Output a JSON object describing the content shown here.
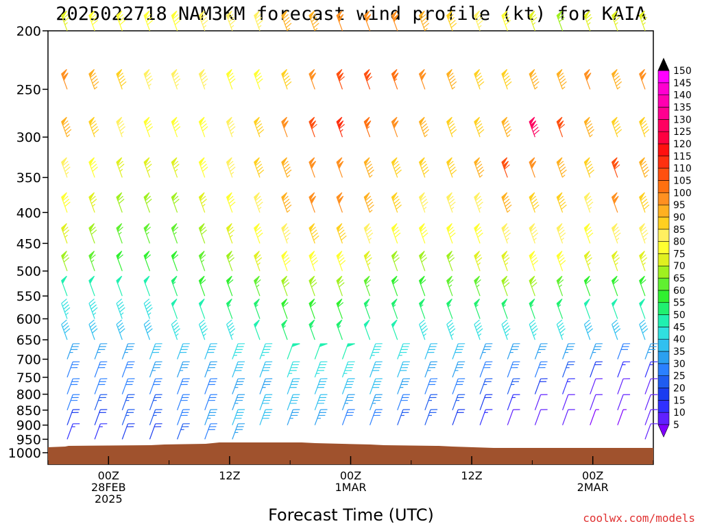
{
  "chart_data": {
    "type": "wind-barb-time-height",
    "title": "2025022718 NAM3KM forecast wind profile (kt) for KAIA",
    "xlabel": "Forecast Time (UTC)",
    "ylabel": "",
    "credit": "coolwx.com/models",
    "pressure_levels": [
      200,
      250,
      300,
      350,
      400,
      450,
      500,
      550,
      600,
      650,
      700,
      750,
      800,
      850,
      900,
      950,
      1000
    ],
    "ylim": [
      1000,
      200
    ],
    "x_ticks": [
      {
        "hour": 6,
        "line1": "00Z",
        "line2": "28FEB",
        "line3": "2025"
      },
      {
        "hour": 18,
        "line1": "12Z",
        "line2": "",
        "line3": ""
      },
      {
        "hour": 30,
        "line1": "00Z",
        "line2": "1MAR",
        "line3": ""
      },
      {
        "hour": 42,
        "line1": "12Z",
        "line2": "",
        "line3": ""
      },
      {
        "hour": 54,
        "line1": "00Z",
        "line2": "2MAR",
        "line3": ""
      }
    ],
    "xlim": [
      0,
      60
    ],
    "colorbar": {
      "levels": [
        5,
        10,
        15,
        20,
        25,
        30,
        35,
        40,
        45,
        50,
        55,
        60,
        65,
        70,
        75,
        80,
        85,
        90,
        95,
        100,
        105,
        110,
        115,
        120,
        125,
        130,
        135,
        140,
        145,
        150
      ],
      "colors": [
        "#7f00ff",
        "#6020ff",
        "#3030ff",
        "#1a3cf0",
        "#1f5cf0",
        "#2b80ff",
        "#2ba0f0",
        "#30c0f0",
        "#30e0e0",
        "#20f0b0",
        "#20f070",
        "#30f030",
        "#60f030",
        "#a0f020",
        "#e0f020",
        "#ffff30",
        "#fff060",
        "#ffd020",
        "#ffb020",
        "#ff9020",
        "#ff7010",
        "#ff5010",
        "#ff3010",
        "#ff1010",
        "#ff0040",
        "#ff0060",
        "#ff0090",
        "#ff00b0",
        "#ff00d0",
        "#ff00ff"
      ]
    },
    "series": [
      {
        "hour_start": 0,
        "hour_end": 59,
        "level": 200,
        "speed_kt": [
          75,
          80,
          80,
          80,
          80,
          85,
          85,
          85,
          95,
          95,
          100,
          100,
          100,
          95,
          90,
          85,
          80,
          75,
          70,
          75,
          75,
          75
        ]
      },
      {
        "hour_start": 0,
        "hour_end": 59,
        "level": 250,
        "speed_kt": [
          100,
          95,
          90,
          85,
          85,
          85,
          80,
          80,
          90,
          100,
          110,
          110,
          105,
          100,
          95,
          90,
          90,
          95,
          95,
          100,
          95,
          100
        ]
      },
      {
        "hour_start": 0,
        "hour_end": 59,
        "level": 300,
        "speed_kt": [
          95,
          90,
          85,
          80,
          80,
          80,
          85,
          90,
          100,
          110,
          115,
          105,
          100,
          95,
          90,
          90,
          95,
          130,
          110,
          95,
          90,
          90
        ]
      },
      {
        "hour_start": 0,
        "hour_end": 59,
        "level": 350,
        "speed_kt": [
          85,
          80,
          75,
          75,
          75,
          80,
          85,
          90,
          95,
          100,
          100,
          95,
          90,
          90,
          90,
          95,
          110,
          100,
          95,
          90,
          110,
          95
        ]
      },
      {
        "hour_start": 0,
        "hour_end": 59,
        "level": 400,
        "speed_kt": [
          80,
          75,
          70,
          70,
          70,
          75,
          80,
          85,
          95,
          100,
          100,
          95,
          90,
          85,
          85,
          85,
          95,
          90,
          90,
          85,
          100,
          90
        ]
      },
      {
        "hour_start": 0,
        "hour_end": 59,
        "level": 450,
        "speed_kt": [
          75,
          70,
          65,
          65,
          65,
          70,
          75,
          80,
          85,
          90,
          90,
          85,
          80,
          80,
          80,
          80,
          85,
          85,
          85,
          80,
          85,
          85
        ]
      },
      {
        "hour_start": 0,
        "hour_end": 59,
        "level": 500,
        "speed_kt": [
          70,
          65,
          60,
          60,
          60,
          65,
          70,
          75,
          80,
          80,
          80,
          75,
          70,
          70,
          70,
          75,
          75,
          80,
          80,
          75,
          75,
          75
        ]
      },
      {
        "hour_start": 0,
        "hour_end": 59,
        "level": 550,
        "speed_kt": [
          50,
          50,
          50,
          50,
          55,
          60,
          60,
          65,
          70,
          70,
          70,
          65,
          60,
          60,
          65,
          65,
          70,
          70,
          65,
          60,
          60,
          60
        ]
      },
      {
        "hour_start": 0,
        "hour_end": 59,
        "level": 600,
        "speed_kt": [
          45,
          45,
          45,
          45,
          50,
          50,
          55,
          55,
          60,
          60,
          60,
          55,
          55,
          55,
          55,
          55,
          55,
          55,
          55,
          50,
          50,
          50
        ]
      },
      {
        "hour_start": 0,
        "hour_end": 59,
        "level": 650,
        "speed_kt": [
          40,
          40,
          40,
          40,
          45,
          45,
          45,
          50,
          55,
          55,
          55,
          50,
          50,
          45,
          45,
          45,
          45,
          45,
          45,
          40,
          40,
          40
        ]
      },
      {
        "hour_start": 0,
        "hour_end": 59,
        "level": 700,
        "speed_kt": [
          35,
          35,
          35,
          40,
          40,
          40,
          45,
          45,
          50,
          50,
          50,
          45,
          45,
          40,
          40,
          35,
          35,
          35,
          35,
          35,
          30,
          35
        ]
      },
      {
        "hour_start": 0,
        "hour_end": 59,
        "level": 750,
        "speed_kt": [
          30,
          30,
          30,
          35,
          35,
          35,
          40,
          40,
          45,
          45,
          45,
          40,
          40,
          35,
          35,
          30,
          30,
          30,
          25,
          20,
          15,
          15
        ]
      },
      {
        "hour_start": 0,
        "hour_end": 59,
        "level": 800,
        "speed_kt": [
          30,
          30,
          30,
          30,
          30,
          30,
          35,
          35,
          40,
          40,
          40,
          40,
          35,
          30,
          30,
          25,
          25,
          20,
          15,
          10,
          10,
          10
        ]
      },
      {
        "hour_start": 0,
        "hour_end": 59,
        "level": 850,
        "speed_kt": [
          30,
          25,
          25,
          25,
          30,
          30,
          35,
          40,
          40,
          40,
          35,
          35,
          30,
          25,
          25,
          20,
          15,
          10,
          10,
          10,
          10,
          10
        ]
      },
      {
        "hour_start": 0,
        "hour_end": 59,
        "level": 900,
        "speed_kt": [
          20,
          20,
          25,
          25,
          30,
          35,
          40,
          40,
          35,
          35,
          30,
          30,
          25,
          25,
          20,
          15,
          10,
          10,
          10,
          5,
          5,
          10
        ]
      },
      {
        "hour_start": 0,
        "hour_end": 59,
        "level": 950,
        "speed_kt": [
          15,
          15,
          20,
          20,
          25,
          30,
          35,
          0,
          0,
          0,
          0,
          0,
          0,
          0,
          0,
          0,
          0,
          0,
          0,
          0,
          0,
          10
        ]
      }
    ]
  }
}
